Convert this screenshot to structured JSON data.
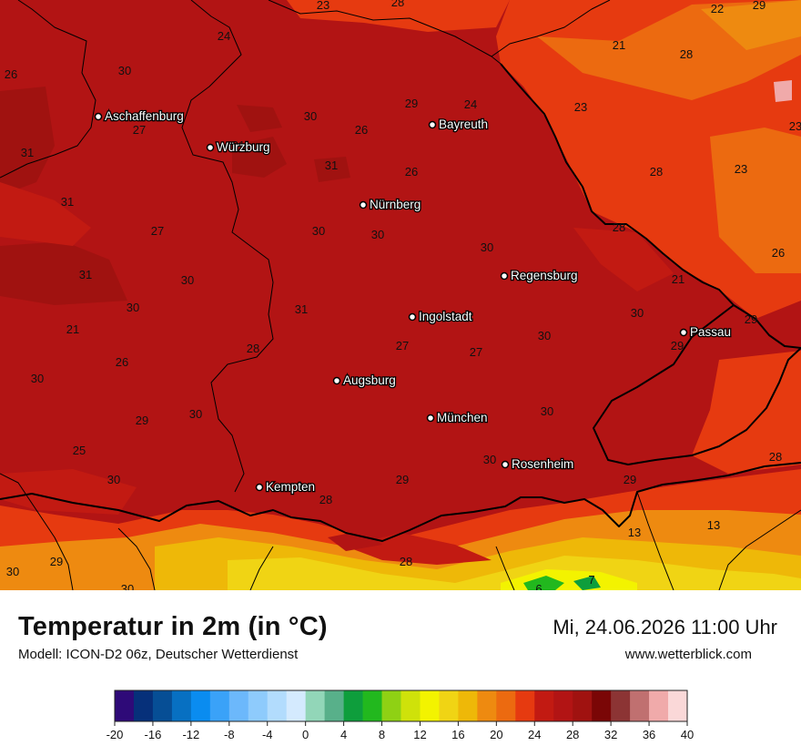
{
  "header": {
    "title": "Temperatur in 2m (in °C)",
    "subtitle": "Modell: ICON-D2 06z, Deutscher Wetterdienst",
    "datetime": "Mi, 24.06.2026 11:00 Uhr",
    "website": "www.wetterblick.com"
  },
  "cities": [
    {
      "name": "Aschaffenburg"
    },
    {
      "name": "Würzburg"
    },
    {
      "name": "Bayreuth"
    },
    {
      "name": "Nürnberg"
    },
    {
      "name": "Regensburg"
    },
    {
      "name": "Ingolstadt"
    },
    {
      "name": "Passau"
    },
    {
      "name": "Augsburg"
    },
    {
      "name": "München"
    },
    {
      "name": "Rosenheim"
    },
    {
      "name": "Kempten"
    }
  ],
  "values": [
    "23",
    "28",
    "22",
    "29",
    "24",
    "21",
    "28",
    "26",
    "30",
    "29",
    "24",
    "23",
    "27",
    "23",
    "31",
    "30",
    "26",
    "31",
    "28",
    "23",
    "31",
    "26",
    "30",
    "31",
    "30",
    "28",
    "27",
    "30",
    "30",
    "31",
    "21",
    "30",
    "31",
    "30",
    "29",
    "21",
    "28",
    "27",
    "30",
    "27",
    "26",
    "30",
    "29",
    "26",
    "30",
    "29",
    "30",
    "25",
    "30",
    "28",
    "29",
    "29",
    "28",
    "30",
    "13",
    "13",
    "29",
    "28",
    "30",
    "30",
    "6",
    "7"
  ],
  "legend": {
    "ticks": [
      "-20",
      "-16",
      "-12",
      "-8",
      "-4",
      "0",
      "4",
      "8",
      "12",
      "16",
      "20",
      "24",
      "28",
      "32",
      "36",
      "40"
    ],
    "colors": [
      "#2e0a78",
      "#06307a",
      "#064e95",
      "#0770c2",
      "#0a8cf0",
      "#3aa2f8",
      "#6cb8fb",
      "#8ecbfc",
      "#b2dcfd",
      "#d4eafe",
      "#92d6b8",
      "#58b08a",
      "#0e9e3c",
      "#22b81e",
      "#8fd114",
      "#cfe20a",
      "#f3f300",
      "#f0d414",
      "#eeb808",
      "#ee8a10",
      "#ec6a10",
      "#e63a10",
      "#c21a12",
      "#b21414",
      "#a01210",
      "#7a0606",
      "#8c3434",
      "#c07070",
      "#f0aaaa",
      "#fad8d8"
    ]
  }
}
